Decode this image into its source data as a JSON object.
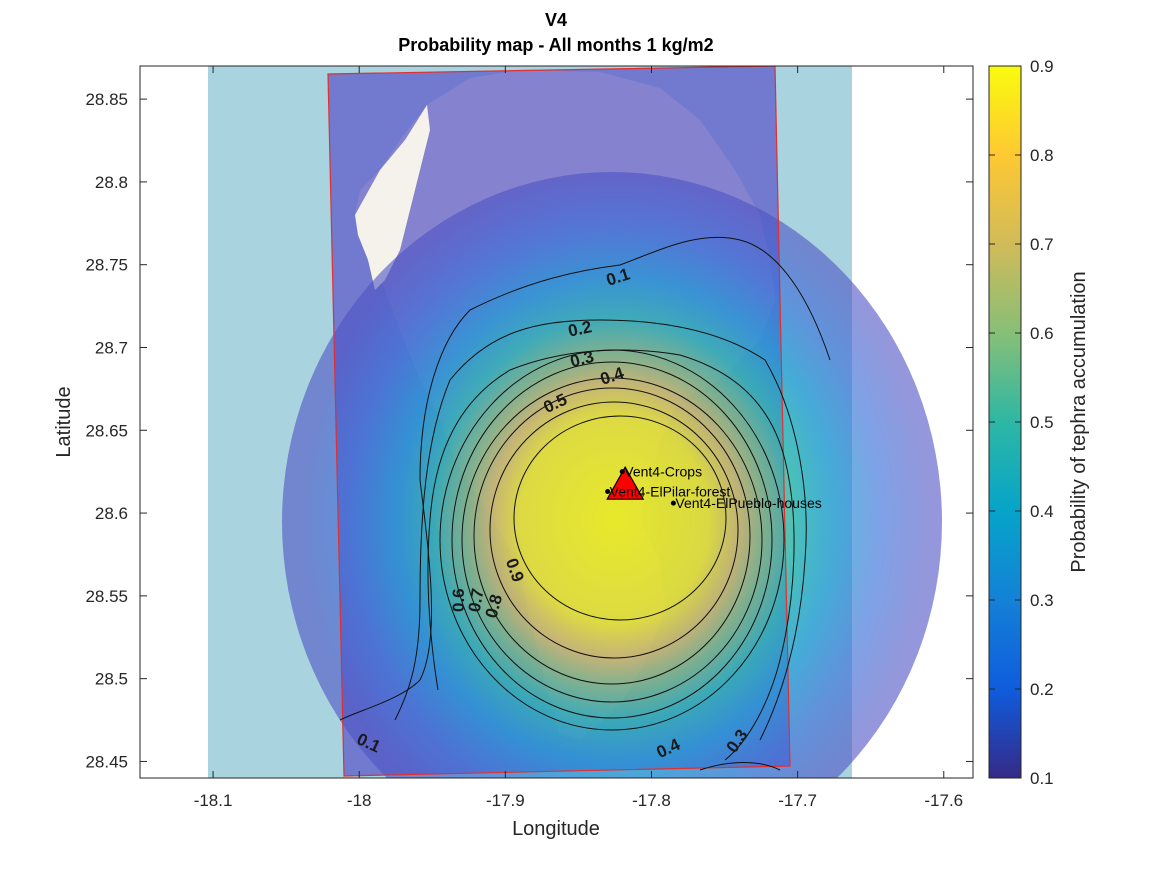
{
  "figure": {
    "title_line1": "V4",
    "title_line2": "Probability map - All months 1 kg/m2",
    "xlabel": "Longitude",
    "ylabel": "Latitude",
    "xlim": [
      -18.15,
      -17.58
    ],
    "ylim": [
      28.44,
      28.87
    ],
    "xticks": [
      -18.1,
      -18,
      -17.9,
      -17.8,
      -17.7,
      -17.6
    ],
    "xtick_labels": [
      "-18.1",
      "-18",
      "-17.9",
      "-17.8",
      "-17.7",
      "-17.6"
    ],
    "yticks": [
      28.45,
      28.5,
      28.55,
      28.6,
      28.65,
      28.7,
      28.75,
      28.8,
      28.85
    ],
    "ytick_labels": [
      "28.45",
      "28.5",
      "28.55",
      "28.6",
      "28.65",
      "28.7",
      "28.75",
      "28.8",
      "28.85"
    ]
  },
  "colorbar": {
    "label": "Probability of tephra accumulation",
    "range": [
      0.1,
      0.9
    ],
    "ticks": [
      "0.1",
      "0.2",
      "0.3",
      "0.4",
      "0.5",
      "0.6",
      "0.7",
      "0.8",
      "0.9"
    ],
    "colormap": [
      "#352a87",
      "#0f5cdd",
      "#1481d6",
      "#06a4ca",
      "#2eb7a4",
      "#87bf77",
      "#d1bb59",
      "#fec832",
      "#f9fb0e"
    ]
  },
  "contour_labels": {
    "north_01": "0.1",
    "sw_01": "0.1",
    "c02": "0.2",
    "c03": "0.3",
    "c04": "0.4",
    "c05": "0.5",
    "c06": "0.6",
    "c07": "0.7",
    "c08": "0.8",
    "c09": "0.9",
    "s04": "0.4",
    "s03": "0.3"
  },
  "vent": {
    "name": "V4",
    "lon": -17.818,
    "lat": 28.612,
    "color": "#ff0000"
  },
  "targets": [
    {
      "label": "Vent4-Crops",
      "lon": -17.82,
      "lat": 28.625
    },
    {
      "label": "Vent4-ElPilar-forest",
      "lon": -17.83,
      "lat": 28.613
    },
    {
      "label": "Vent4-ElPueblo-houses",
      "lon": -17.785,
      "lat": 28.606
    }
  ],
  "colors": {
    "sea": "#a9d3de",
    "domain_border": "#e03030",
    "contour": "#111111"
  }
}
